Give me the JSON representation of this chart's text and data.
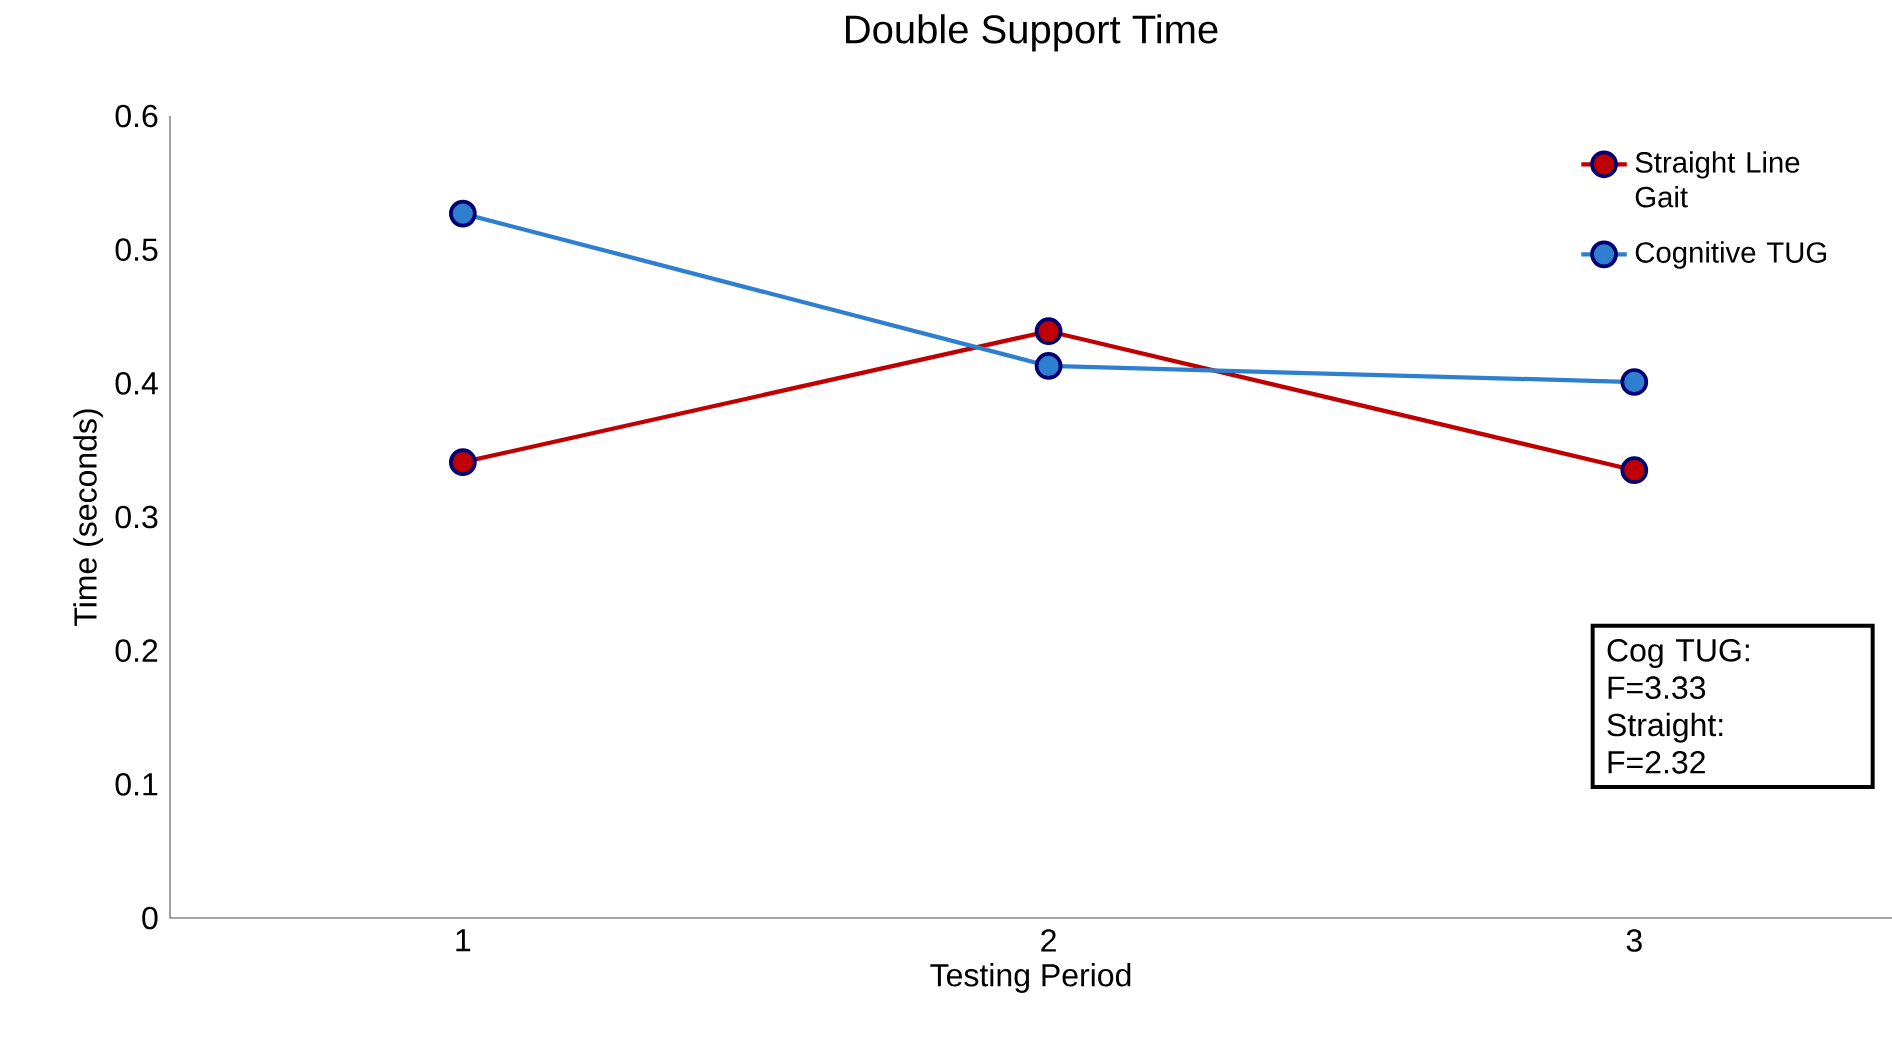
{
  "chart_data": {
    "type": "line",
    "title": "Double Support Time",
    "xlabel": "Testing Period",
    "ylabel": "Time (seconds)",
    "categories": [
      "1",
      "2",
      "3"
    ],
    "series": [
      {
        "name": "Straight Line Gait",
        "color": "#c00000",
        "values": [
          0.341,
          0.439,
          0.335
        ]
      },
      {
        "name": "Cognitive TUG",
        "color": "#2e7fd0",
        "values": [
          0.527,
          0.413,
          0.401
        ]
      }
    ],
    "ylim": [
      0,
      0.6
    ],
    "yticks": [
      0,
      0.1,
      0.2,
      0.3,
      0.4,
      0.5,
      0.6
    ],
    "marker": "circle",
    "legend": "top right",
    "grid": false,
    "annotations": [
      "Cog TUG:",
      "F=3.33",
      "Straight:",
      "F=2.32"
    ]
  }
}
